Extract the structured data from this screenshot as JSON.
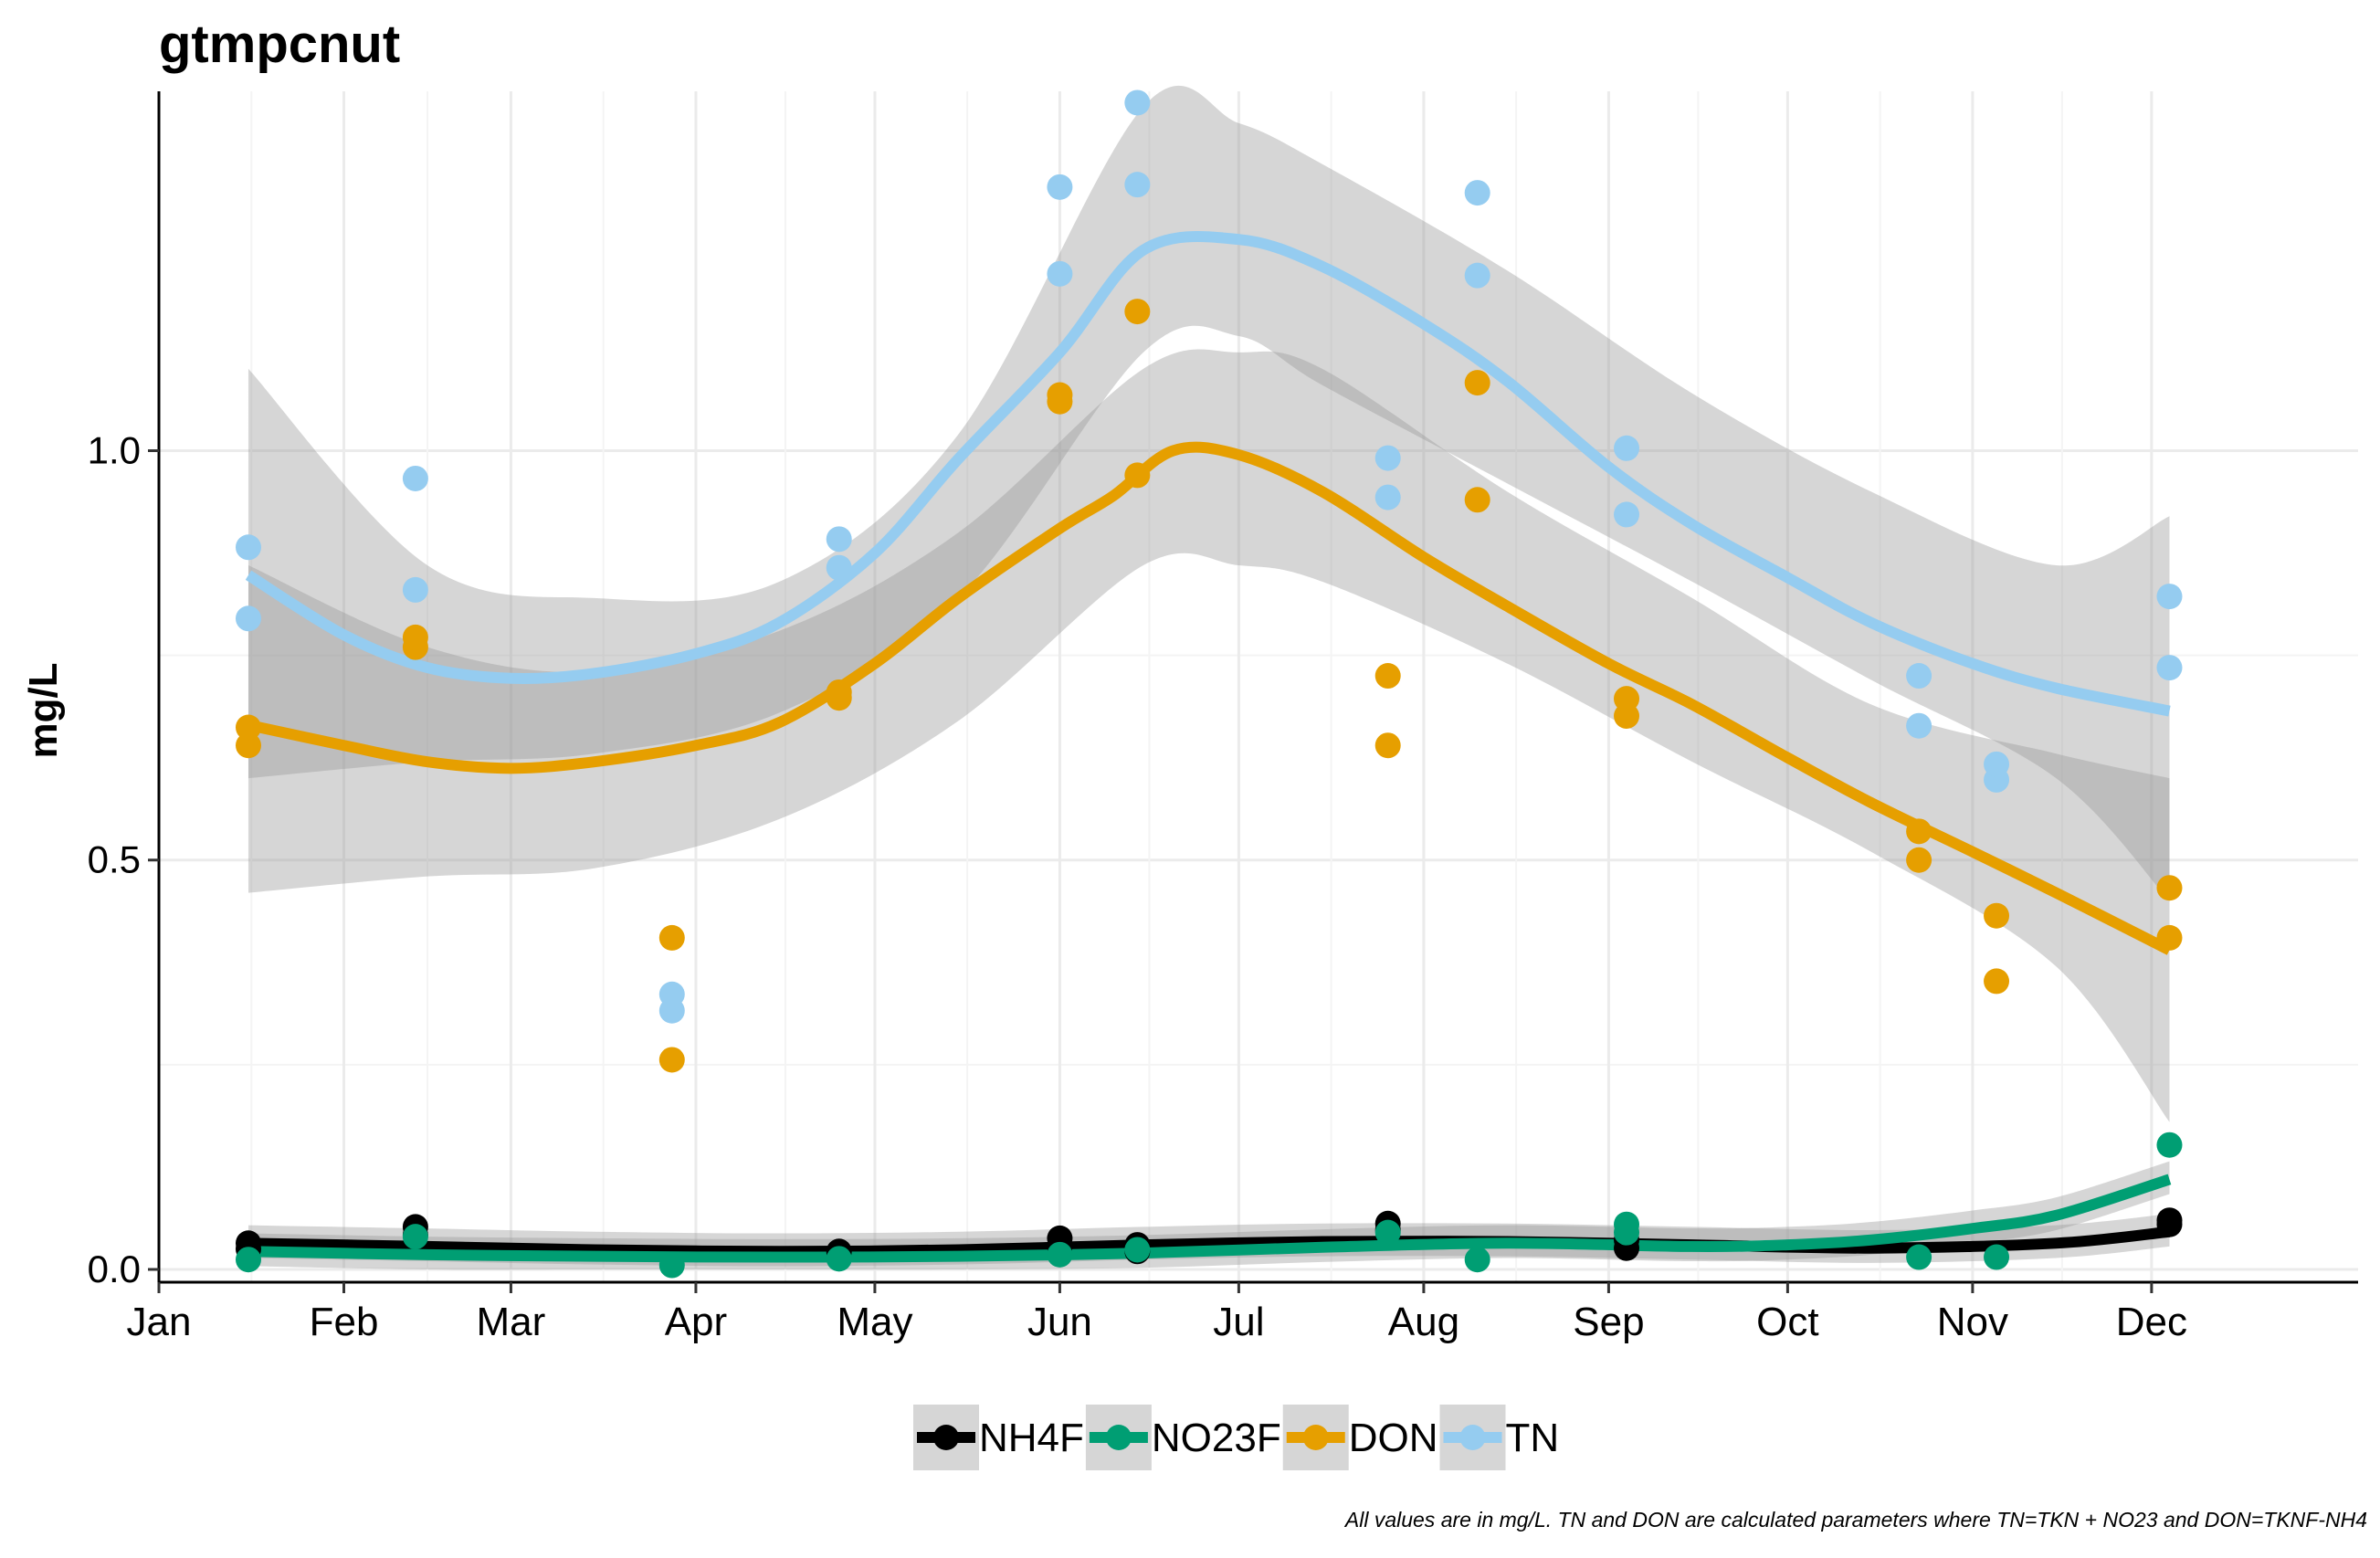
{
  "chart_data": {
    "type": "scatter",
    "title": "gtmpcnut",
    "xlabel": "",
    "ylabel": "mg/L",
    "x_tick_labels": [
      "Jan",
      "Feb",
      "Mar",
      "Apr",
      "May",
      "Jun",
      "Jul",
      "Aug",
      "Sep",
      "Oct",
      "Nov",
      "Dec"
    ],
    "y_tick_labels": [
      "0.0",
      "0.5",
      "1.0"
    ],
    "ylim": [
      0.0,
      1.43
    ],
    "y_ticks": [
      0.0,
      0.5,
      1.0
    ],
    "x_tick_dates": [
      "Jan 1",
      "Feb 1",
      "Mar 1",
      "Apr 1",
      "May 1",
      "Jun 1",
      "Jul 1",
      "Aug 1",
      "Sep 1",
      "Oct 1",
      "Nov 1",
      "Dec 1"
    ],
    "grid": "on",
    "legend_position": "bottom",
    "caption": "All values are in mg/L. TN and DON are calculated parameters where TN=TKN + NO23 and DON=TKNF-NH4",
    "series": [
      {
        "name": "NH4F",
        "color": "#000000",
        "points": [
          [
            "Jan 16",
            0.025
          ],
          [
            "Jan 16",
            0.032
          ],
          [
            "Feb 13",
            0.042
          ],
          [
            "Feb 13",
            0.052
          ],
          [
            "Apr 25",
            0.022
          ],
          [
            "Jun 1",
            0.028
          ],
          [
            "Jun 1",
            0.038
          ],
          [
            "Jun 14",
            0.022
          ],
          [
            "Jun 14",
            0.03
          ],
          [
            "Jul 26",
            0.048
          ],
          [
            "Jul 26",
            0.056
          ],
          [
            "Sep 4",
            0.026
          ],
          [
            "Sep 4",
            0.036
          ],
          [
            "Dec 4",
            0.055
          ],
          [
            "Dec 4",
            0.06
          ]
        ],
        "smooth": [
          [
            "Jan 16",
            0.032
          ],
          [
            "Feb 15",
            0.028
          ],
          [
            "Mar 15",
            0.024
          ],
          [
            "Apr 15",
            0.022
          ],
          [
            "May 15",
            0.024
          ],
          [
            "Jun 15",
            0.03
          ],
          [
            "Jul 15",
            0.034
          ],
          [
            "Aug 15",
            0.034
          ],
          [
            "Sep 15",
            0.03
          ],
          [
            "Oct 15",
            0.026
          ],
          [
            "Nov 15",
            0.032
          ],
          [
            "Dec 4",
            0.046
          ]
        ]
      },
      {
        "name": "NO23F",
        "color": "#009E73",
        "points": [
          [
            "Jan 16",
            0.012
          ],
          [
            "Feb 13",
            0.04
          ],
          [
            "Mar 28",
            0.005
          ],
          [
            "Apr 25",
            0.013
          ],
          [
            "Jun 1",
            0.018
          ],
          [
            "Jun 14",
            0.024
          ],
          [
            "Jul 26",
            0.045
          ],
          [
            "Aug 10",
            0.012
          ],
          [
            "Sep 4",
            0.045
          ],
          [
            "Sep 4",
            0.055
          ],
          [
            "Oct 23",
            0.015
          ],
          [
            "Nov 5",
            0.015
          ],
          [
            "Dec 4",
            0.152
          ]
        ],
        "smooth": [
          [
            "Jan 16",
            0.022
          ],
          [
            "Feb 15",
            0.018
          ],
          [
            "Mar 15",
            0.016
          ],
          [
            "Apr 15",
            0.015
          ],
          [
            "May 15",
            0.016
          ],
          [
            "Jun 15",
            0.02
          ],
          [
            "Jul 15",
            0.027
          ],
          [
            "Aug 15",
            0.032
          ],
          [
            "Sep 15",
            0.028
          ],
          [
            "Oct 1",
            0.03
          ],
          [
            "Oct 15",
            0.036
          ],
          [
            "Nov 1",
            0.05
          ],
          [
            "Nov 15",
            0.066
          ],
          [
            "Dec 4",
            0.11
          ]
        ]
      },
      {
        "name": "DON",
        "color": "#E69F00",
        "points": [
          [
            "Jan 16",
            0.64
          ],
          [
            "Jan 16",
            0.662
          ],
          [
            "Feb 13",
            0.76
          ],
          [
            "Feb 13",
            0.772
          ],
          [
            "Mar 28",
            0.256
          ],
          [
            "Mar 28",
            0.405
          ],
          [
            "Apr 25",
            0.698
          ],
          [
            "Apr 25",
            0.705
          ],
          [
            "Jun 1",
            1.06
          ],
          [
            "Jun 1",
            1.068
          ],
          [
            "Jun 14",
            0.97
          ],
          [
            "Jun 14",
            1.17
          ],
          [
            "Jul 26",
            0.64
          ],
          [
            "Jul 26",
            0.725
          ],
          [
            "Aug 10",
            0.94
          ],
          [
            "Aug 10",
            1.083
          ],
          [
            "Sep 4",
            0.676
          ],
          [
            "Sep 4",
            0.697
          ],
          [
            "Oct 23",
            0.5
          ],
          [
            "Oct 23",
            0.535
          ],
          [
            "Nov 5",
            0.352
          ],
          [
            "Nov 5",
            0.432
          ],
          [
            "Dec 4",
            0.405
          ],
          [
            "Dec 4",
            0.466
          ]
        ],
        "band": [
          [
            "Jan 16",
            0.46,
            0.86
          ],
          [
            "Feb 15",
            0.48,
            0.76
          ],
          [
            "Mar 15",
            0.49,
            0.73
          ],
          [
            "Apr 15",
            0.55,
            0.78
          ],
          [
            "May 15",
            0.67,
            0.9
          ],
          [
            "Jun 15",
            0.86,
            1.1
          ],
          [
            "Jul 1",
            0.86,
            1.12
          ],
          [
            "Jul 15",
            0.84,
            1.1
          ],
          [
            "Aug 15",
            0.74,
            0.95
          ],
          [
            "Sep 15",
            0.62,
            0.82
          ],
          [
            "Oct 15",
            0.51,
            0.69
          ],
          [
            "Nov 15",
            0.37,
            0.63
          ],
          [
            "Dec 4",
            0.18,
            0.6
          ]
        ],
        "smooth": [
          [
            "Jan 16",
            0.665
          ],
          [
            "Feb 1",
            0.64
          ],
          [
            "Feb 15",
            0.62
          ],
          [
            "Mar 1",
            0.612
          ],
          [
            "Mar 15",
            0.62
          ],
          [
            "Apr 1",
            0.64
          ],
          [
            "Apr 15",
            0.668
          ],
          [
            "May 1",
            0.74
          ],
          [
            "May 15",
            0.82
          ],
          [
            "Jun 1",
            0.905
          ],
          [
            "Jun 10",
            0.945
          ],
          [
            "Jun 20",
            1.0
          ],
          [
            "Jul 1",
            0.995
          ],
          [
            "Jul 15",
            0.95
          ],
          [
            "Aug 1",
            0.87
          ],
          [
            "Aug 15",
            0.81
          ],
          [
            "Sep 1",
            0.74
          ],
          [
            "Sep 15",
            0.69
          ],
          [
            "Oct 1",
            0.625
          ],
          [
            "Oct 15",
            0.57
          ],
          [
            "Nov 1",
            0.51
          ],
          [
            "Nov 15",
            0.46
          ],
          [
            "Dec 4",
            0.39
          ]
        ]
      },
      {
        "name": "TN",
        "color": "#95CCF0",
        "points": [
          [
            "Jan 16",
            0.795
          ],
          [
            "Jan 16",
            0.882
          ],
          [
            "Feb 13",
            0.83
          ],
          [
            "Feb 13",
            0.966
          ],
          [
            "Mar 28",
            0.316
          ],
          [
            "Mar 28",
            0.336
          ],
          [
            "Apr 25",
            0.857
          ],
          [
            "Apr 25",
            0.892
          ],
          [
            "Jun 1",
            1.216
          ],
          [
            "Jun 1",
            1.322
          ],
          [
            "Jun 14",
            1.325
          ],
          [
            "Jun 14",
            1.425
          ],
          [
            "Jul 26",
            0.943
          ],
          [
            "Jul 26",
            0.991
          ],
          [
            "Aug 10",
            1.214
          ],
          [
            "Aug 10",
            1.315
          ],
          [
            "Sep 4",
            0.922
          ],
          [
            "Sep 4",
            1.003
          ],
          [
            "Oct 23",
            0.664
          ],
          [
            "Oct 23",
            0.725
          ],
          [
            "Nov 5",
            0.598
          ],
          [
            "Nov 5",
            0.617
          ],
          [
            "Dec 4",
            0.735
          ],
          [
            "Dec 4",
            0.822
          ]
        ],
        "band": [
          [
            "Jan 16",
            0.6,
            1.1
          ],
          [
            "Feb 15",
            0.62,
            0.86
          ],
          [
            "Mar 15",
            0.63,
            0.82
          ],
          [
            "Apr 15",
            0.68,
            0.84
          ],
          [
            "May 15",
            0.82,
            1.02
          ],
          [
            "Jun 15",
            1.12,
            1.42
          ],
          [
            "Jul 1",
            1.14,
            1.4
          ],
          [
            "Jul 15",
            1.08,
            1.35
          ],
          [
            "Aug 15",
            0.96,
            1.22
          ],
          [
            "Sep 15",
            0.84,
            1.07
          ],
          [
            "Oct 15",
            0.72,
            0.95
          ],
          [
            "Nov 15",
            0.6,
            0.86
          ],
          [
            "Dec 4",
            0.45,
            0.92
          ]
        ],
        "smooth": [
          [
            "Jan 16",
            0.848
          ],
          [
            "Feb 1",
            0.775
          ],
          [
            "Feb 15",
            0.735
          ],
          [
            "Mar 1",
            0.722
          ],
          [
            "Mar 15",
            0.728
          ],
          [
            "Apr 1",
            0.752
          ],
          [
            "Apr 15",
            0.79
          ],
          [
            "May 1",
            0.875
          ],
          [
            "May 15",
            0.99
          ],
          [
            "Jun 1",
            1.12
          ],
          [
            "Jun 15",
            1.245
          ],
          [
            "Jul 1",
            1.258
          ],
          [
            "Jul 15",
            1.225
          ],
          [
            "Aug 1",
            1.155
          ],
          [
            "Aug 15",
            1.085
          ],
          [
            "Sep 1",
            0.98
          ],
          [
            "Sep 15",
            0.91
          ],
          [
            "Oct 1",
            0.845
          ],
          [
            "Oct 15",
            0.79
          ],
          [
            "Nov 1",
            0.74
          ],
          [
            "Nov 15",
            0.71
          ],
          [
            "Dec 4",
            0.682
          ]
        ]
      }
    ]
  }
}
